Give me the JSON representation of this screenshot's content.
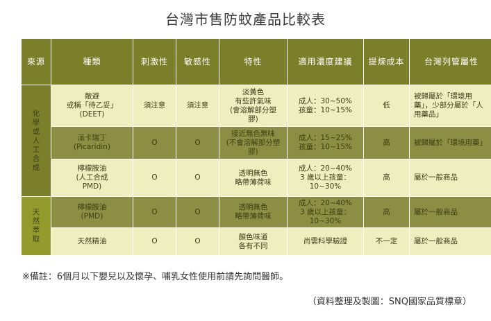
{
  "title": "台灣市售防蚊產品比較表",
  "headers": [
    "來源",
    "種類",
    "刺激性",
    "敏感性",
    "特性",
    "適用濃度建議",
    "提煉成本",
    "台灣列管屬性"
  ],
  "sources": {
    "chemical": [
      "化",
      "學",
      "或",
      "人",
      "工",
      "合",
      "成"
    ],
    "natural": [
      "天",
      "然",
      "萃",
      "取"
    ]
  },
  "rows": [
    {
      "type": [
        "敵避",
        "或稱「待乙妥」",
        "(DEET)"
      ],
      "irritation": "須注意",
      "sensitivity": "須注意",
      "feature": [
        "淡黃色",
        "有些許氣味",
        "(會溶解部分塑",
        "膠)"
      ],
      "concentration": [
        "成人：30~50%",
        "孩童：10~15%"
      ],
      "cost": "低",
      "regulation": [
        "被歸屬於「環境用",
        "藥」，少部分屬於「人",
        "用藥品」"
      ]
    },
    {
      "type": [
        "派卡瑞丁",
        "(Picaridin)"
      ],
      "irritation": "O",
      "sensitivity": "O",
      "feature": [
        "接近無色無味",
        "(不會溶解部分塑",
        "膠)"
      ],
      "concentration": [
        "成人：15~25%",
        "孩童：10~15%"
      ],
      "cost": "高",
      "regulation": [
        "被歸屬於「環境用藥」"
      ]
    },
    {
      "type": [
        "檸檬胺油",
        "(人工合成",
        "PMD)"
      ],
      "irritation": "O",
      "sensitivity": "O",
      "feature": [
        "透明無色",
        "略帶薄荷味"
      ],
      "concentration": [
        "成人：20~40%",
        "3 歲以上孩童：",
        "10~30%"
      ],
      "cost": "高",
      "regulation": [
        "屬於一般商品"
      ]
    },
    {
      "type": [
        "檸檬胺油",
        "(PMD)"
      ],
      "irritation": "O",
      "sensitivity": "O",
      "feature": [
        "透明無色",
        "略帶薄荷味"
      ],
      "concentration": [
        "成人：20~40%",
        "3 歲以上孩童：",
        "10~30%"
      ],
      "cost": "高",
      "regulation": [
        "屬於一般商品"
      ]
    },
    {
      "type": [
        "天然精油"
      ],
      "irritation": "O",
      "sensitivity": "O",
      "feature": [
        "顏色味道",
        "各有不同"
      ],
      "concentration": [
        "尚需科學驗證"
      ],
      "cost": "不一定",
      "regulation": [
        "屬於一般商品"
      ]
    }
  ],
  "note": "※備註：6個月以下嬰兒以及懷孕、哺乳女性使用前請先詢問醫師。",
  "credit": "（資料整理及製圖：SNQ國家品質標章）"
}
